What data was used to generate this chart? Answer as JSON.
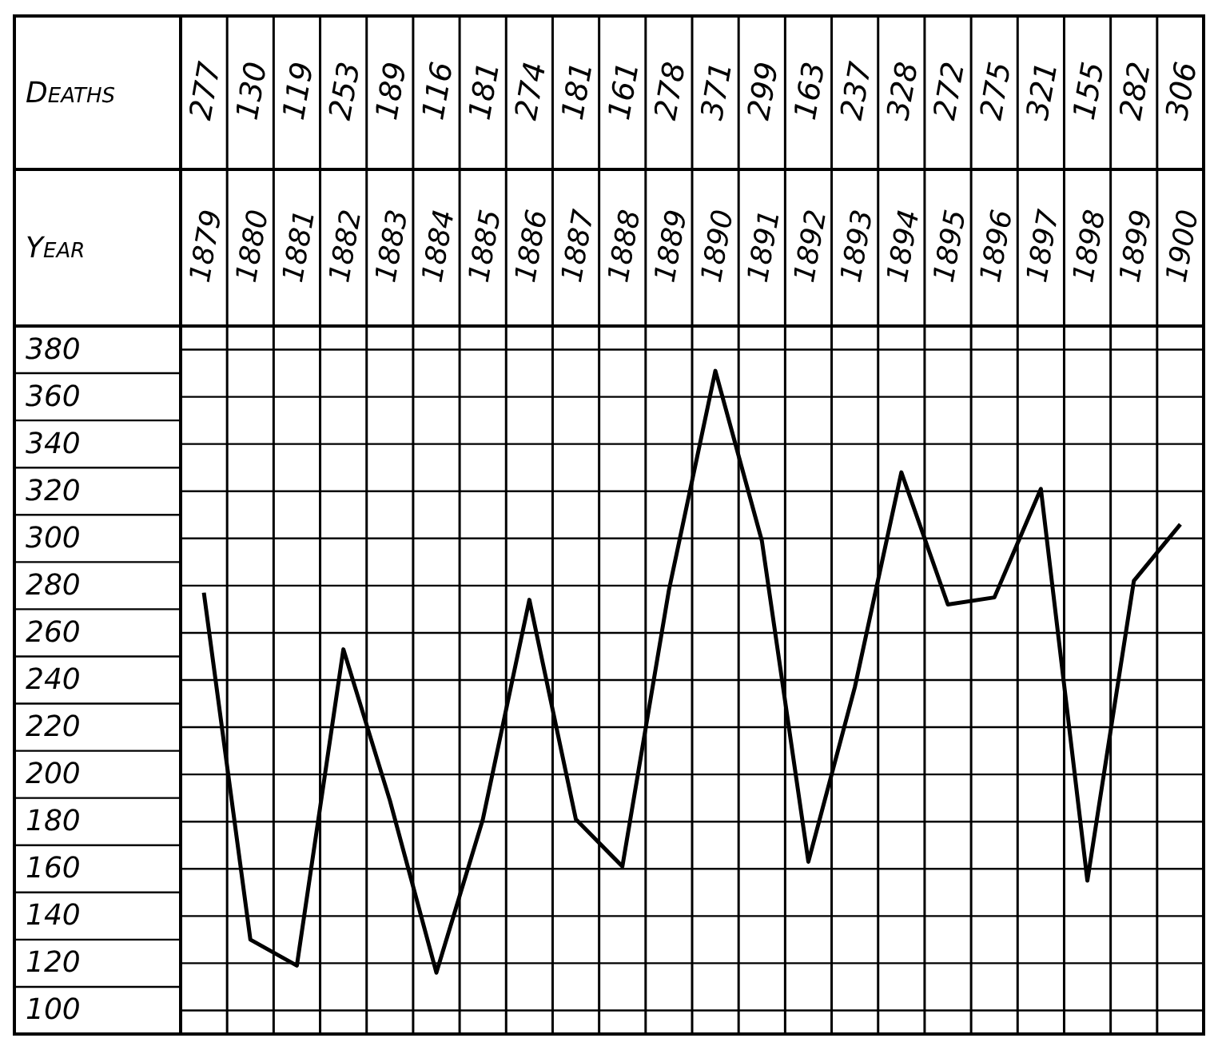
{
  "chart_data": {
    "type": "line",
    "xlabel": "Year",
    "ylabel": "Deaths",
    "categories": [
      "1879",
      "1880",
      "1881",
      "1882",
      "1883",
      "1884",
      "1885",
      "1886",
      "1887",
      "1888",
      "1889",
      "1890",
      "1891",
      "1892",
      "1893",
      "1894",
      "1895",
      "1896",
      "1897",
      "1898",
      "1899",
      "1900"
    ],
    "series": [
      {
        "color": "#000000",
        "values": [
          277,
          130,
          119,
          253,
          189,
          116,
          181,
          274,
          181,
          161,
          278,
          371,
          299,
          163,
          237,
          328,
          272,
          275,
          321,
          155,
          282,
          306
        ]
      }
    ],
    "ylim": [
      90,
      390
    ],
    "yticks": [
      100,
      120,
      140,
      160,
      180,
      200,
      220,
      240,
      260,
      280,
      300,
      320,
      340,
      360,
      380
    ],
    "grid": true,
    "data_labels": true,
    "marker": "none",
    "line_style": "solid"
  }
}
